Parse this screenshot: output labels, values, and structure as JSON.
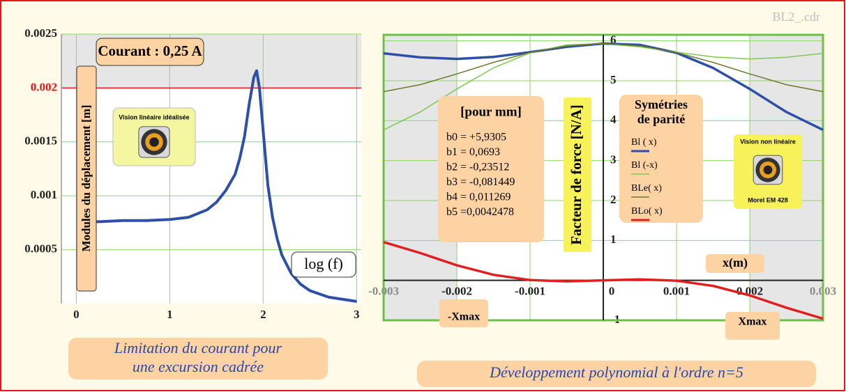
{
  "file_label": "BL2_.cdr",
  "chart_data": [
    {
      "type": "line",
      "annotations": [
        "Courant : 0,25 A"
      ],
      "ylabel": "Modules du déplacement  [m]",
      "xlabel": "log (f)",
      "badge": {
        "title": "Vision linéaire idéalisée"
      },
      "caption": [
        "Limitation du courant pour",
        "une excursion cadrée"
      ],
      "x": [
        0,
        0.25,
        0.5,
        0.75,
        1,
        1.2,
        1.4,
        1.5,
        1.6,
        1.7,
        1.75,
        1.8,
        1.85,
        1.9,
        1.93,
        1.96,
        2,
        2.05,
        2.1,
        2.15,
        2.2,
        2.3,
        2.4,
        2.5,
        2.7,
        3
      ],
      "values": [
        0.00076,
        0.00076,
        0.00077,
        0.00077,
        0.00078,
        0.0008,
        0.00087,
        0.00094,
        0.00105,
        0.0012,
        0.00135,
        0.00155,
        0.00185,
        0.0021,
        0.00216,
        0.002,
        0.0016,
        0.0011,
        0.0008,
        0.0006,
        0.00045,
        0.00028,
        0.00018,
        0.00012,
        6e-05,
        2e-05
      ],
      "color": "#2e4fa8",
      "xlim": [
        -0.16,
        3.05
      ],
      "ylim": [
        0,
        0.0025
      ],
      "xticks": [
        0,
        1,
        2,
        3
      ],
      "yticks": [
        0.0005,
        0.001,
        0.0015,
        0.002,
        0.0025
      ],
      "highlight": {
        "value": 0.002,
        "color": "#e8141e"
      },
      "grid": true
    },
    {
      "type": "line",
      "ylabel": "Facteur de force [N/A]",
      "xlabel": "x(m)",
      "coefficients_title": "[pour mm]",
      "coefficients": [
        "b0 = +5,9305",
        "b1 = 0,0693",
        "b2 = -0,23512",
        "b3 = -0,081449",
        "b4 = 0,011269",
        "b5 =0,0042478"
      ],
      "legend_title": [
        "Symétries",
        "de parité"
      ],
      "markers": [
        "-Xmax",
        "Xmax"
      ],
      "badge": {
        "title": "Vision non linéaire",
        "subtitle": "Morel EM 428"
      },
      "caption": [
        "Développement polynomial à l'ordre n=5"
      ],
      "x": [
        -0.003,
        -0.0025,
        -0.002,
        -0.0015,
        -0.001,
        -0.0005,
        0,
        0.0005,
        0.001,
        0.0015,
        0.002,
        0.0025,
        0.003
      ],
      "series": [
        {
          "name": "Bl ( x)",
          "color": "#2e4fa8",
          "values": [
            5.686,
            5.586,
            5.547,
            5.597,
            5.715,
            5.848,
            5.931,
            5.897,
            5.699,
            5.32,
            4.793,
            4.217,
            3.768
          ]
        },
        {
          "name": "Bl (-x)",
          "color": "#7ec850",
          "values": [
            3.768,
            4.217,
            4.793,
            5.32,
            5.699,
            5.897,
            5.931,
            5.848,
            5.715,
            5.597,
            5.547,
            5.586,
            5.686
          ]
        },
        {
          "name": "BLe( x)",
          "color": "#6b7a2a",
          "values": [
            4.727,
            4.901,
            5.17,
            5.459,
            5.707,
            5.872,
            5.931,
            5.872,
            5.707,
            5.459,
            5.17,
            4.901,
            4.727
          ]
        },
        {
          "name": "BLo( x)",
          "color": "#e02020",
          "values": [
            0.959,
            0.685,
            0.377,
            0.139,
            0.008,
            -0.025,
            0,
            0.025,
            -0.008,
            -0.139,
            -0.377,
            -0.685,
            -0.959
          ]
        }
      ],
      "xlim": [
        -0.003,
        0.003
      ],
      "ylim": [
        -1,
        6.15
      ],
      "xticks": [
        -0.003,
        -0.002,
        -0.001,
        0,
        0.001,
        0.002,
        0.003
      ],
      "yticks": [
        -1,
        1,
        2,
        3,
        4,
        5,
        6
      ],
      "grid": true
    }
  ]
}
